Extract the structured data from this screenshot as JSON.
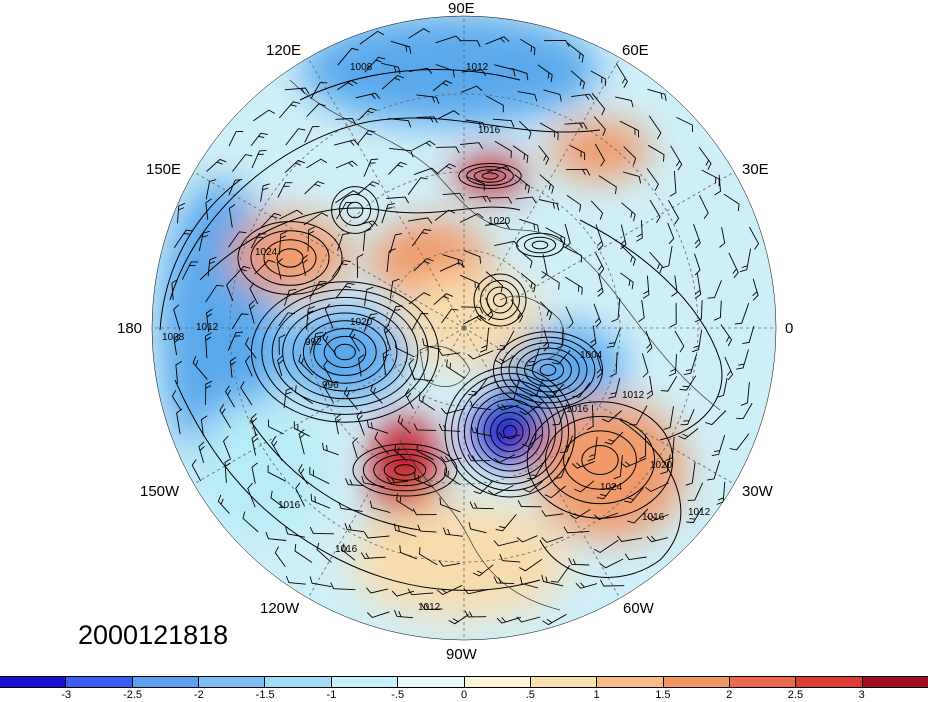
{
  "map": {
    "projection": "north-polar-stereographic",
    "fields": [
      "shaded-anomaly",
      "sea-level-pressure-contours",
      "wind-barbs",
      "coastlines"
    ],
    "longitude_labels": [
      {
        "name": "lon-90e",
        "text": "90E"
      },
      {
        "name": "lon-60e",
        "text": "60E"
      },
      {
        "name": "lon-30e",
        "text": "30E"
      },
      {
        "name": "lon-0",
        "text": "0"
      },
      {
        "name": "lon-30w",
        "text": "30W"
      },
      {
        "name": "lon-60w",
        "text": "60W"
      },
      {
        "name": "lon-90w",
        "text": "90W"
      },
      {
        "name": "lon-120w",
        "text": "120W"
      },
      {
        "name": "lon-150w",
        "text": "150W"
      },
      {
        "name": "lon-180",
        "text": "180"
      },
      {
        "name": "lon-150e",
        "text": "150E"
      },
      {
        "name": "lon-120e",
        "text": "120E"
      }
    ],
    "contour_labels": [
      "1008",
      "1012",
      "1016",
      "1020",
      "1024",
      "996",
      "992",
      "1004",
      "1016",
      "1012",
      "1020",
      "1024",
      "1016",
      "1012",
      "1008",
      "1012",
      "1016",
      "1020",
      "1016",
      "1012"
    ],
    "colors": {
      "strong_negative": "#1010c8",
      "negative": "#5aa8ec",
      "weak_negative": "#b8ecf8",
      "weak_positive": "#f8dcae",
      "positive": "#f09a6a",
      "strong_positive": "#c81e28"
    }
  },
  "datetime": "2000121818",
  "colorbar": {
    "colors": [
      "#1a0fd0",
      "#3a5ff0",
      "#5aa0f0",
      "#7abff4",
      "#9fdcf6",
      "#c6f0fa",
      "#eaf9fc",
      "#fdf5da",
      "#f9dfac",
      "#f6bc82",
      "#f1965e",
      "#ec6a4c",
      "#dc3c34",
      "#a00f20"
    ],
    "labels": [
      "-3",
      "-2.5",
      "-2",
      "-1.5",
      "-1",
      "-.5",
      "0",
      ".5",
      "1",
      "1.5",
      "2",
      "2.5",
      "3"
    ]
  }
}
